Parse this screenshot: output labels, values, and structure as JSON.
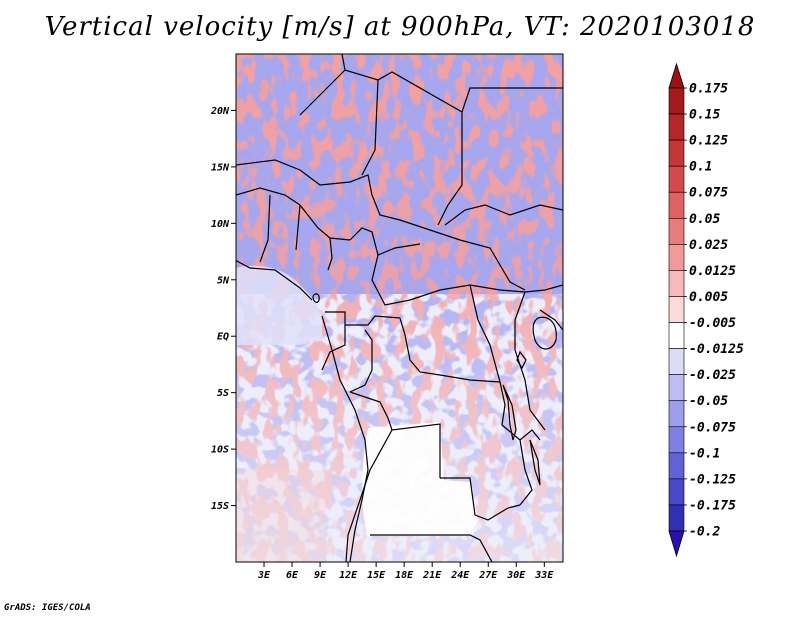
{
  "title": "Vertical velocity [m/s] at 900hPa, VT: 2020103018",
  "credit": "GrADS: IGES/COLA",
  "map": {
    "projection": "lat-lon",
    "lon_range": [
      0,
      35
    ],
    "lat_range": [
      -20,
      25
    ],
    "lat_ticks": [
      {
        "value": 20,
        "label": "20N"
      },
      {
        "value": 15,
        "label": "15N"
      },
      {
        "value": 10,
        "label": "10N"
      },
      {
        "value": 5,
        "label": "5N"
      },
      {
        "value": 0,
        "label": "EQ"
      },
      {
        "value": -5,
        "label": "5S"
      },
      {
        "value": -10,
        "label": "10S"
      },
      {
        "value": -15,
        "label": "15S"
      }
    ],
    "lon_ticks": [
      {
        "value": 3,
        "label": "3E"
      },
      {
        "value": 6,
        "label": "6E"
      },
      {
        "value": 9,
        "label": "9E"
      },
      {
        "value": 12,
        "label": "12E"
      },
      {
        "value": 15,
        "label": "15E"
      },
      {
        "value": 18,
        "label": "18E"
      },
      {
        "value": 21,
        "label": "21E"
      },
      {
        "value": 24,
        "label": "24E"
      },
      {
        "value": 27,
        "label": "27E"
      },
      {
        "value": 30,
        "label": "30E"
      },
      {
        "value": 33,
        "label": "33E"
      }
    ]
  },
  "colorbar": {
    "levels": [
      {
        "label": "0.175",
        "color": "#a51a1a"
      },
      {
        "label": "0.15",
        "color": "#b52626"
      },
      {
        "label": "0.125",
        "color": "#c63636"
      },
      {
        "label": "0.1",
        "color": "#d44a4a"
      },
      {
        "label": "0.075",
        "color": "#df6262"
      },
      {
        "label": "0.05",
        "color": "#e87c7c"
      },
      {
        "label": "0.025",
        "color": "#f09a9a"
      },
      {
        "label": "0.0125",
        "color": "#f6baba"
      },
      {
        "label": "0.005",
        "color": "#fbdada"
      },
      {
        "label": "-0.005",
        "color": "#ffffff"
      },
      {
        "label": "-0.0125",
        "color": "#dcdcf8"
      },
      {
        "label": "-0.025",
        "color": "#bdbdf2"
      },
      {
        "label": "-0.05",
        "color": "#9e9eec"
      },
      {
        "label": "-0.075",
        "color": "#8080e4"
      },
      {
        "label": "-0.1",
        "color": "#6262d8"
      },
      {
        "label": "-0.125",
        "color": "#4848c8"
      },
      {
        "label": "-0.175",
        "color": "#3030b4"
      },
      {
        "label": "-0.2",
        "color": "#1a1aa0"
      }
    ],
    "top_color": "#a01010",
    "bottom_color": "#2a10b0"
  },
  "colors": {
    "land_blue": "#8f8fe6",
    "land_red": "#e46a6a",
    "neutral": "#ffffff"
  }
}
